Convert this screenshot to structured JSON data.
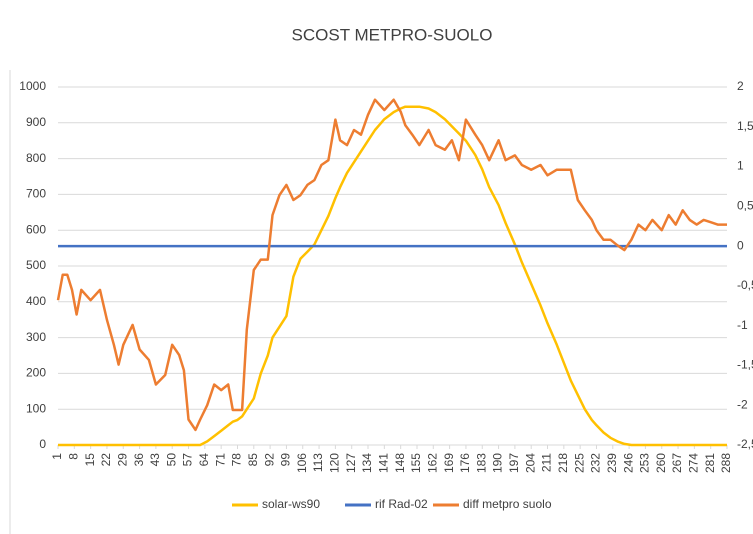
{
  "chart_data": {
    "type": "line",
    "title": "SCOST METPRO-SUOLO",
    "x": [
      1,
      3,
      5,
      7,
      9,
      11,
      15,
      19,
      22,
      25,
      27,
      29,
      33,
      36,
      40,
      43,
      47,
      50,
      53,
      55,
      57,
      60,
      62,
      65,
      68,
      71,
      74,
      76,
      78,
      80,
      82,
      85,
      88,
      91,
      93,
      96,
      99,
      102,
      105,
      108,
      111,
      114,
      117,
      120,
      122,
      125,
      128,
      131,
      134,
      137,
      141,
      145,
      148,
      150,
      153,
      156,
      160,
      163,
      167,
      170,
      173,
      176,
      180,
      183,
      186,
      190,
      193,
      197,
      200,
      204,
      208,
      211,
      215,
      218,
      221,
      224,
      227,
      230,
      232,
      235,
      238,
      241,
      244,
      247,
      250,
      253,
      256,
      260,
      263,
      266,
      269,
      272,
      275,
      278,
      281,
      284,
      288
    ],
    "xlim": [
      1,
      288
    ],
    "xticks": [
      1,
      8,
      15,
      22,
      29,
      36,
      43,
      50,
      57,
      64,
      71,
      78,
      85,
      92,
      99,
      106,
      113,
      120,
      127,
      134,
      141,
      148,
      155,
      162,
      169,
      176,
      183,
      190,
      197,
      204,
      211,
      218,
      225,
      232,
      239,
      246,
      253,
      260,
      267,
      274,
      281,
      288
    ],
    "ylim": [
      0,
      1000
    ],
    "yticks": [
      0,
      100,
      200,
      300,
      400,
      500,
      600,
      700,
      800,
      900,
      1000
    ],
    "y2lim": [
      -2.5,
      2
    ],
    "y2ticks": [
      2,
      {
        "value": 1.5,
        "label": "1,5"
      },
      1,
      {
        "value": 0.5,
        "label": "0,5"
      },
      0,
      {
        "value": -0.5,
        "label": "-0,5"
      },
      -1,
      {
        "value": -1.5,
        "label": "-1,5"
      },
      -2,
      {
        "value": -2.5,
        "label": "-2,5"
      }
    ],
    "grid": true,
    "legend": "bottom",
    "series": [
      {
        "name": "solar-ws90",
        "color": "#ffc000",
        "values": [
          0,
          0,
          0,
          0,
          0,
          0,
          0,
          0,
          0,
          0,
          0,
          0,
          0,
          0,
          0,
          0,
          0,
          0,
          0,
          0,
          0,
          0,
          0,
          10,
          25,
          40,
          55,
          65,
          70,
          80,
          100,
          130,
          200,
          250,
          300,
          330,
          360,
          470,
          520,
          540,
          560,
          600,
          640,
          690,
          720,
          760,
          790,
          820,
          850,
          880,
          910,
          930,
          940,
          945,
          945,
          945,
          940,
          930,
          910,
          890,
          870,
          850,
          810,
          770,
          720,
          670,
          620,
          560,
          510,
          450,
          390,
          340,
          280,
          230,
          180,
          140,
          100,
          70,
          55,
          35,
          20,
          10,
          3,
          0,
          0,
          0,
          0,
          0,
          0,
          0,
          0,
          0,
          0,
          0,
          0,
          0,
          0
        ]
      },
      {
        "name": "rif Rad-02",
        "color": "#4472c4",
        "axis": "y2",
        "values": [
          0,
          0,
          0,
          0,
          0,
          0,
          0,
          0,
          0,
          0,
          0,
          0,
          0,
          0,
          0,
          0,
          0,
          0,
          0,
          0,
          0,
          0,
          0,
          0,
          0,
          0,
          0,
          0,
          0,
          0,
          0,
          0,
          0,
          0,
          0,
          0,
          0,
          0,
          0,
          0,
          0,
          0,
          0,
          0,
          0,
          0,
          0,
          0,
          0,
          0,
          0,
          0,
          0,
          0,
          0,
          0,
          0,
          0,
          0,
          0,
          0,
          0,
          0,
          0,
          0,
          0,
          0,
          0,
          0,
          0,
          0,
          0,
          0,
          0,
          0,
          0,
          0,
          0,
          0,
          0,
          0,
          0,
          0,
          0,
          0,
          0,
          0,
          0,
          0,
          0,
          0,
          0,
          0,
          0,
          0,
          0,
          0
        ]
      },
      {
        "name": "diff metpro suolo",
        "color": "#ed7d31",
        "axis": "y2",
        "values": [
          -0.68,
          -0.36,
          -0.36,
          -0.55,
          -0.86,
          -0.55,
          -0.68,
          -0.55,
          -0.93,
          -1.24,
          -1.49,
          -1.24,
          -0.99,
          -1.3,
          -1.43,
          -1.74,
          -1.62,
          -1.24,
          -1.37,
          -1.56,
          -2.18,
          -2.31,
          -2.18,
          -2.0,
          -1.74,
          -1.81,
          -1.74,
          -2.06,
          -2.06,
          -2.06,
          -1.05,
          -0.3,
          -0.17,
          -0.17,
          0.39,
          0.64,
          0.77,
          0.58,
          0.64,
          0.77,
          0.83,
          1.02,
          1.08,
          1.59,
          1.33,
          1.27,
          1.46,
          1.4,
          1.65,
          1.84,
          1.71,
          1.84,
          1.69,
          1.52,
          1.4,
          1.27,
          1.46,
          1.27,
          1.21,
          1.33,
          1.08,
          1.59,
          1.4,
          1.27,
          1.08,
          1.33,
          1.08,
          1.14,
          1.02,
          0.96,
          1.02,
          0.89,
          0.96,
          0.96,
          0.96,
          0.58,
          0.45,
          0.33,
          0.2,
          0.08,
          0.08,
          0.01,
          -0.05,
          0.08,
          0.27,
          0.2,
          0.33,
          0.2,
          0.39,
          0.27,
          0.45,
          0.33,
          0.27,
          0.33,
          0.3,
          0.27,
          0.27
        ]
      }
    ]
  }
}
